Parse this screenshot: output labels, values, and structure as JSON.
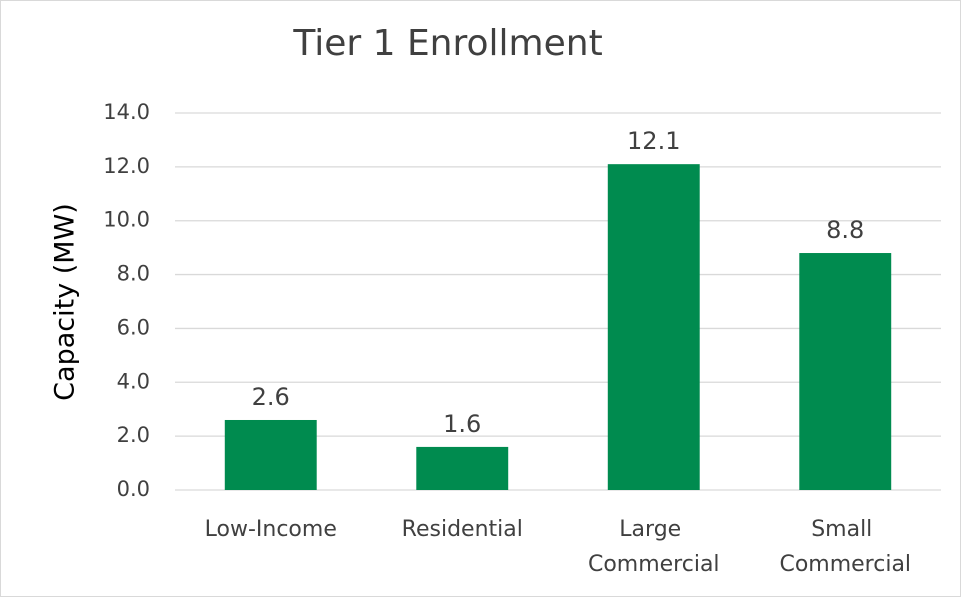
{
  "chart_data": {
    "type": "bar",
    "title": "Tier 1 Enrollment",
    "y_label": "Capacity (MW)",
    "categories": [
      "Low-Income",
      "Residential",
      "Large Commercial",
      "Small Commercial"
    ],
    "values": [
      2.6,
      1.6,
      12.1,
      8.8
    ],
    "color": "#008b4f",
    "ylim": [
      0,
      14
    ],
    "yticks": [
      {
        "value": 0,
        "label": "0.0"
      },
      {
        "value": 2,
        "label": "2.0"
      },
      {
        "value": 4,
        "label": "4.0"
      },
      {
        "value": 6,
        "label": "6.0"
      },
      {
        "value": 8,
        "label": "8.0"
      },
      {
        "value": 10,
        "label": "10.0"
      },
      {
        "value": 12,
        "label": "12.0"
      },
      {
        "value": 14,
        "label": "14.0"
      }
    ],
    "grid": true
  }
}
